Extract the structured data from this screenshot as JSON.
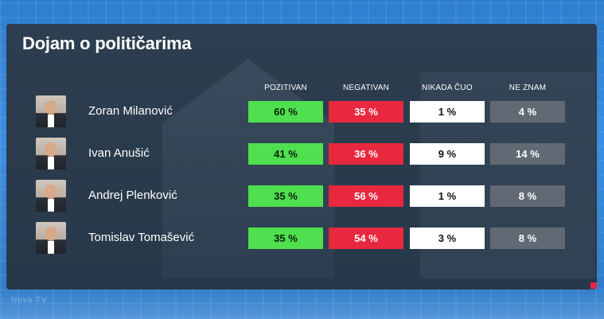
{
  "header": {
    "title": "Dojam o političarima"
  },
  "footer": {
    "watermark": "Nova TV"
  },
  "colors": {
    "pozitivan": "#4fe04f",
    "negativan": "#e8283f",
    "nikada_cuo": "#ffffff",
    "ne_znam": "#616a74",
    "panel": "#2d3e50",
    "background": "#2f7fd0"
  },
  "chart_data": {
    "type": "table",
    "title": "Dojam o političarima",
    "columns": [
      "POZITIVAN",
      "NEGATIVAN",
      "NIKADA ČUO",
      "NE ZNAM"
    ],
    "rows": [
      {
        "name": "Zoran Milanović",
        "values": [
          "60 %",
          "35 %",
          "1 %",
          "4 %"
        ]
      },
      {
        "name": "Ivan Anušić",
        "values": [
          "41 %",
          "36 %",
          "9 %",
          "14 %"
        ]
      },
      {
        "name": "Andrej Plenković",
        "values": [
          "35 %",
          "56 %",
          "1 %",
          "8 %"
        ]
      },
      {
        "name": "Tomislav Tomašević",
        "values": [
          "35 %",
          "54 %",
          "3 %",
          "8 %"
        ]
      }
    ],
    "values": [
      [
        60,
        35,
        1,
        4
      ],
      [
        41,
        36,
        9,
        14
      ],
      [
        35,
        56,
        1,
        8
      ],
      [
        35,
        54,
        3,
        8
      ]
    ],
    "unit": "%"
  }
}
